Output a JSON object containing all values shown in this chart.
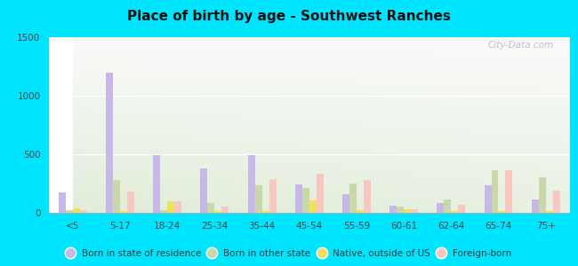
{
  "title": "Place of birth by age - Southwest Ranches",
  "categories": [
    "<5",
    "5-17",
    "18-24",
    "25-34",
    "35-44",
    "45-54",
    "55-59",
    "60-61",
    "62-64",
    "65-74",
    "75+"
  ],
  "series": {
    "Born in state of residence": [
      175,
      1200,
      490,
      380,
      490,
      245,
      160,
      60,
      85,
      235,
      110
    ],
    "Born in other state": [
      25,
      280,
      25,
      85,
      235,
      215,
      250,
      50,
      110,
      360,
      300
    ],
    "Native, outside of US": [
      40,
      18,
      100,
      18,
      12,
      105,
      22,
      28,
      18,
      18,
      18
    ],
    "Foreign-born": [
      25,
      180,
      100,
      55,
      290,
      335,
      280,
      28,
      70,
      365,
      190
    ]
  },
  "colors": {
    "Born in state of residence": "#c8b8e8",
    "Born in other state": "#c8d8a8",
    "Native, outside of US": "#f0e060",
    "Foreign-born": "#f8c8c0"
  },
  "ylim": [
    0,
    1500
  ],
  "yticks": [
    0,
    500,
    1000,
    1500
  ],
  "bg_top_color": "#f0f8e8",
  "bg_bottom_color": "#c8e8b8",
  "figure_background": "#00e5ff",
  "watermark": "City-Data.com",
  "bar_width": 0.15
}
